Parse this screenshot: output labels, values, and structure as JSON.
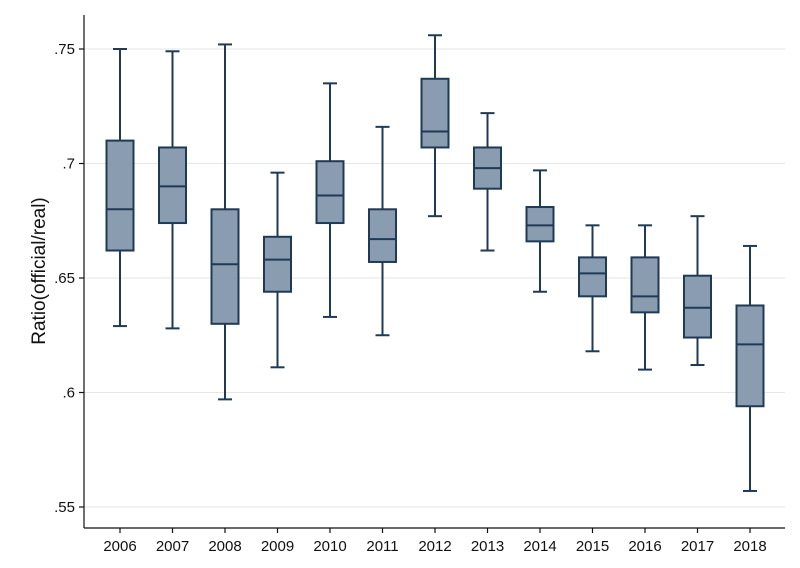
{
  "chart_data": {
    "type": "boxplot",
    "title": "",
    "xlabel": "",
    "ylabel": "Ratio(official/real)",
    "ylim": [
      0.545,
      0.765
    ],
    "yticks": [
      0.55,
      0.6,
      0.65,
      0.7,
      0.75
    ],
    "ytick_labels": [
      ".55",
      ".6",
      ".65",
      ".7",
      ".75"
    ],
    "grid": true,
    "box_color": "#8a9cb0",
    "line_color": "#1f3a56",
    "categories": [
      "2006",
      "2007",
      "2008",
      "2009",
      "2010",
      "2011",
      "2012",
      "2013",
      "2014",
      "2015",
      "2016",
      "2017",
      "2018"
    ],
    "boxes": [
      {
        "min": 0.629,
        "q1": 0.662,
        "median": 0.68,
        "q3": 0.71,
        "max": 0.75
      },
      {
        "min": 0.628,
        "q1": 0.674,
        "median": 0.69,
        "q3": 0.707,
        "max": 0.749
      },
      {
        "min": 0.597,
        "q1": 0.63,
        "median": 0.656,
        "q3": 0.68,
        "max": 0.752
      },
      {
        "min": 0.611,
        "q1": 0.644,
        "median": 0.658,
        "q3": 0.668,
        "max": 0.696
      },
      {
        "min": 0.633,
        "q1": 0.674,
        "median": 0.686,
        "q3": 0.701,
        "max": 0.735
      },
      {
        "min": 0.625,
        "q1": 0.657,
        "median": 0.667,
        "q3": 0.68,
        "max": 0.716
      },
      {
        "min": 0.677,
        "q1": 0.707,
        "median": 0.714,
        "q3": 0.737,
        "max": 0.756
      },
      {
        "min": 0.662,
        "q1": 0.689,
        "median": 0.698,
        "q3": 0.707,
        "max": 0.722
      },
      {
        "min": 0.644,
        "q1": 0.666,
        "median": 0.673,
        "q3": 0.681,
        "max": 0.697
      },
      {
        "min": 0.618,
        "q1": 0.642,
        "median": 0.652,
        "q3": 0.659,
        "max": 0.673
      },
      {
        "min": 0.61,
        "q1": 0.635,
        "median": 0.642,
        "q3": 0.659,
        "max": 0.673
      },
      {
        "min": 0.612,
        "q1": 0.624,
        "median": 0.637,
        "q3": 0.651,
        "max": 0.677
      },
      {
        "min": 0.557,
        "q1": 0.594,
        "median": 0.621,
        "q3": 0.638,
        "max": 0.664
      }
    ]
  }
}
